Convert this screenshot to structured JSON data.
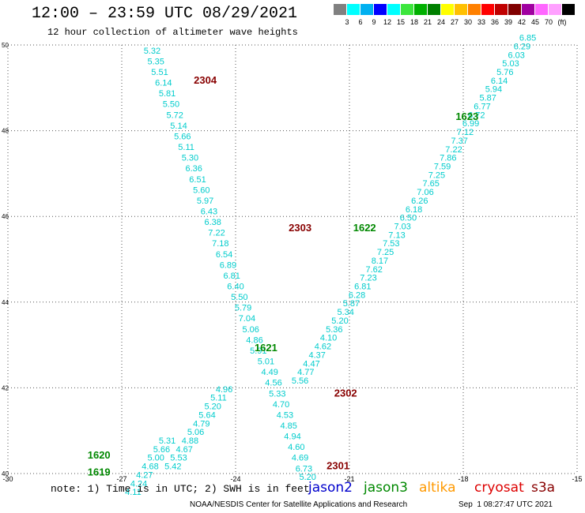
{
  "header": {
    "title": "12:00 – 23:59 UTC 08/29/2021",
    "subtitle": "12 hour collection of altimeter wave heights"
  },
  "colorbar": {
    "colors": [
      "#808080",
      "#00ffff",
      "#00b0f0",
      "#0000ff",
      "#00ffff",
      "#3ce63c",
      "#00b000",
      "#008000",
      "#ffff00",
      "#ffc000",
      "#ff8000",
      "#ff0000",
      "#c00000",
      "#800000",
      "#a000a0",
      "#ff66ff",
      "#ffa0ff",
      "#000000"
    ],
    "labels": [
      "3",
      "6",
      "9",
      "12",
      "15",
      "18",
      "21",
      "24",
      "27",
      "30",
      "33",
      "36",
      "39",
      "42",
      "45",
      "70",
      "(ft)"
    ]
  },
  "footer": {
    "note": "note: 1) Time is in UTC; 2) SWH is in feet",
    "legend": [
      {
        "name": "jason2",
        "color": "#0000cc"
      },
      {
        "name": "jason3",
        "color": "#008800"
      },
      {
        "name": "altika",
        "color": "#ff9900"
      },
      {
        "name": "cryosat",
        "color": "#dd0000"
      },
      {
        "name": "s3a",
        "color": "#880000"
      }
    ],
    "credit": "NOAA/NESDIS Center for Satellite Applications and Research",
    "timestamp": "Sep  1 08:27:47 UTC 2021"
  },
  "chart_data": {
    "type": "scatter",
    "xlim": [
      -30,
      -15
    ],
    "ylim": [
      40,
      50
    ],
    "xticks": [
      "-30",
      "-27",
      "-24",
      "-21",
      "-18",
      "-15"
    ],
    "yticks": [
      "40",
      "42",
      "44",
      "46",
      "48",
      "50"
    ],
    "grid": true,
    "value_color": "#00cccc",
    "tracks": [
      {
        "label": "2304",
        "color": "#880000",
        "label_x": -24.8,
        "label_y": 49.1,
        "points": [
          {
            "x": -26.2,
            "y": 49.8,
            "v": "5.32"
          },
          {
            "x": -26.1,
            "y": 49.55,
            "v": "5.35"
          },
          {
            "x": -26.0,
            "y": 49.3,
            "v": "5.51"
          },
          {
            "x": -25.9,
            "y": 49.05,
            "v": "6.14"
          },
          {
            "x": -25.8,
            "y": 48.8,
            "v": "5.81"
          },
          {
            "x": -25.7,
            "y": 48.55,
            "v": "5.50"
          },
          {
            "x": -25.6,
            "y": 48.3,
            "v": "5.72"
          },
          {
            "x": -25.5,
            "y": 48.05,
            "v": "5.14"
          },
          {
            "x": -25.4,
            "y": 47.8,
            "v": "5.66"
          },
          {
            "x": -25.3,
            "y": 47.55,
            "v": "5.11"
          },
          {
            "x": -25.2,
            "y": 47.3,
            "v": "5.30"
          },
          {
            "x": -25.1,
            "y": 47.05,
            "v": "6.36"
          },
          {
            "x": -25.0,
            "y": 46.8,
            "v": "6.51"
          },
          {
            "x": -24.9,
            "y": 46.55,
            "v": "5.60"
          },
          {
            "x": -24.8,
            "y": 46.3,
            "v": "5.97"
          },
          {
            "x": -24.7,
            "y": 46.05,
            "v": "6.43"
          },
          {
            "x": -24.6,
            "y": 45.8,
            "v": "6.38"
          }
        ]
      },
      {
        "label": "2303",
        "color": "#880000",
        "label_x": -22.3,
        "label_y": 45.65,
        "points": [
          {
            "x": -24.5,
            "y": 45.55,
            "v": "7.22"
          },
          {
            "x": -24.4,
            "y": 45.3,
            "v": "7.18"
          },
          {
            "x": -24.3,
            "y": 45.05,
            "v": "6.54"
          },
          {
            "x": -24.2,
            "y": 44.8,
            "v": "6.89"
          },
          {
            "x": -24.1,
            "y": 44.55,
            "v": "6.81"
          },
          {
            "x": -24.0,
            "y": 44.3,
            "v": "6.40"
          },
          {
            "x": -23.9,
            "y": 44.05,
            "v": "5.50"
          },
          {
            "x": -23.8,
            "y": 43.8,
            "v": "5.79"
          },
          {
            "x": -23.7,
            "y": 43.55,
            "v": "7.04"
          },
          {
            "x": -23.6,
            "y": 43.3,
            "v": "5.06"
          },
          {
            "x": -23.5,
            "y": 43.05,
            "v": "4.86"
          },
          {
            "x": -23.4,
            "y": 42.8,
            "v": "5.91"
          }
        ]
      },
      {
        "label": "2302",
        "color": "#880000",
        "label_x": -21.1,
        "label_y": 41.8,
        "points": [
          {
            "x": -23.2,
            "y": 42.55,
            "v": "5.01"
          },
          {
            "x": -23.1,
            "y": 42.3,
            "v": "4.49"
          },
          {
            "x": -23.0,
            "y": 42.05,
            "v": "4.56"
          },
          {
            "x": -22.9,
            "y": 41.8,
            "v": "5.33"
          },
          {
            "x": -22.8,
            "y": 41.55,
            "v": "4.70"
          },
          {
            "x": -22.7,
            "y": 41.3,
            "v": "4.53"
          }
        ]
      },
      {
        "label": "2301",
        "color": "#880000",
        "label_x": -21.3,
        "label_y": 40.1,
        "points": [
          {
            "x": -22.6,
            "y": 41.05,
            "v": "4.85"
          },
          {
            "x": -22.5,
            "y": 40.8,
            "v": "4.94"
          },
          {
            "x": -22.4,
            "y": 40.55,
            "v": "4.60"
          },
          {
            "x": -22.3,
            "y": 40.3,
            "v": "4.69"
          },
          {
            "x": -22.2,
            "y": 40.05,
            "v": "6.73"
          },
          {
            "x": -22.1,
            "y": 39.85,
            "v": "5.20"
          }
        ]
      },
      {
        "label": "1623",
        "color": "#008800",
        "label_x": -17.9,
        "label_y": 48.25,
        "points": [
          {
            "x": -16.3,
            "y": 50.1,
            "v": "6.85"
          },
          {
            "x": -16.45,
            "y": 49.9,
            "v": "6.29"
          },
          {
            "x": -16.6,
            "y": 49.7,
            "v": "6.03"
          },
          {
            "x": -16.75,
            "y": 49.5,
            "v": "5.03"
          },
          {
            "x": -16.9,
            "y": 49.3,
            "v": "5.76"
          },
          {
            "x": -17.05,
            "y": 49.1,
            "v": "6.14"
          },
          {
            "x": -17.2,
            "y": 48.9,
            "v": "5.94"
          },
          {
            "x": -17.35,
            "y": 48.7,
            "v": "5.87"
          },
          {
            "x": -17.5,
            "y": 48.5,
            "v": "6.77"
          },
          {
            "x": -17.65,
            "y": 48.3,
            "v": "6.72"
          },
          {
            "x": -17.8,
            "y": 48.1,
            "v": "6.99"
          },
          {
            "x": -17.95,
            "y": 47.9,
            "v": "7.12"
          }
        ]
      },
      {
        "label": "1622",
        "color": "#008800",
        "label_x": -20.6,
        "label_y": 45.65,
        "points": [
          {
            "x": -18.1,
            "y": 47.7,
            "v": "7.37"
          },
          {
            "x": -18.25,
            "y": 47.5,
            "v": "7.22"
          },
          {
            "x": -18.4,
            "y": 47.3,
            "v": "7.86"
          },
          {
            "x": -18.55,
            "y": 47.1,
            "v": "7.59"
          },
          {
            "x": -18.7,
            "y": 46.9,
            "v": "7.25"
          },
          {
            "x": -18.85,
            "y": 46.7,
            "v": "7.65"
          },
          {
            "x": -19.0,
            "y": 46.5,
            "v": "7.06"
          },
          {
            "x": -19.15,
            "y": 46.3,
            "v": "6.26"
          },
          {
            "x": -19.3,
            "y": 46.1,
            "v": "6.18"
          },
          {
            "x": -19.45,
            "y": 45.9,
            "v": "6.50"
          },
          {
            "x": -19.6,
            "y": 45.7,
            "v": "7.03"
          },
          {
            "x": -19.75,
            "y": 45.5,
            "v": "7.13"
          },
          {
            "x": -19.9,
            "y": 45.3,
            "v": "7.53"
          },
          {
            "x": -20.05,
            "y": 45.1,
            "v": "7.25"
          },
          {
            "x": -20.2,
            "y": 44.9,
            "v": "8.17"
          },
          {
            "x": -20.35,
            "y": 44.7,
            "v": "7.62"
          }
        ]
      },
      {
        "label": "1621",
        "color": "#008800",
        "label_x": -23.2,
        "label_y": 42.85,
        "points": [
          {
            "x": -20.5,
            "y": 44.5,
            "v": "7.23"
          },
          {
            "x": -20.65,
            "y": 44.3,
            "v": "6.81"
          },
          {
            "x": -20.8,
            "y": 44.1,
            "v": "6.28"
          },
          {
            "x": -20.95,
            "y": 43.9,
            "v": "5.87"
          },
          {
            "x": -21.1,
            "y": 43.7,
            "v": "5.34"
          },
          {
            "x": -21.25,
            "y": 43.5,
            "v": "5.20"
          },
          {
            "x": -21.4,
            "y": 43.3,
            "v": "5.36"
          },
          {
            "x": -21.55,
            "y": 43.1,
            "v": "4.10"
          },
          {
            "x": -21.7,
            "y": 42.9,
            "v": "4.62"
          },
          {
            "x": -21.85,
            "y": 42.7,
            "v": "4.37"
          },
          {
            "x": -22.0,
            "y": 42.5,
            "v": "4.47"
          },
          {
            "x": -22.15,
            "y": 42.3,
            "v": "4.77"
          },
          {
            "x": -22.3,
            "y": 42.1,
            "v": "5.56"
          }
        ]
      },
      {
        "label": "1620",
        "color": "#008800",
        "label_x": -27.6,
        "label_y": 40.35,
        "points": [
          {
            "x": -24.3,
            "y": 41.9,
            "v": "4.96"
          },
          {
            "x": -24.45,
            "y": 41.7,
            "v": "5.11"
          },
          {
            "x": -24.6,
            "y": 41.5,
            "v": "5.20"
          },
          {
            "x": -24.75,
            "y": 41.3,
            "v": "5.64"
          },
          {
            "x": -24.9,
            "y": 41.1,
            "v": "4.79"
          },
          {
            "x": -25.05,
            "y": 40.9,
            "v": "5.06"
          },
          {
            "x": -25.2,
            "y": 40.7,
            "v": "4.88"
          },
          {
            "x": -25.35,
            "y": 40.5,
            "v": "4.67"
          },
          {
            "x": -25.5,
            "y": 40.3,
            "v": "5.53"
          },
          {
            "x": -25.65,
            "y": 40.1,
            "v": "5.42"
          }
        ]
      },
      {
        "label": "1619",
        "color": "#008800",
        "label_x": -27.6,
        "label_y": 39.95,
        "points": [
          {
            "x": -25.8,
            "y": 40.7,
            "v": "5.31"
          },
          {
            "x": -25.95,
            "y": 40.5,
            "v": "5.66"
          },
          {
            "x": -26.1,
            "y": 40.3,
            "v": "5.00"
          },
          {
            "x": -26.25,
            "y": 40.1,
            "v": "4.68"
          },
          {
            "x": -26.4,
            "y": 39.9,
            "v": "4.27"
          },
          {
            "x": -26.55,
            "y": 39.7,
            "v": "4.24"
          },
          {
            "x": -26.7,
            "y": 39.5,
            "v": "4.11"
          }
        ]
      }
    ]
  }
}
